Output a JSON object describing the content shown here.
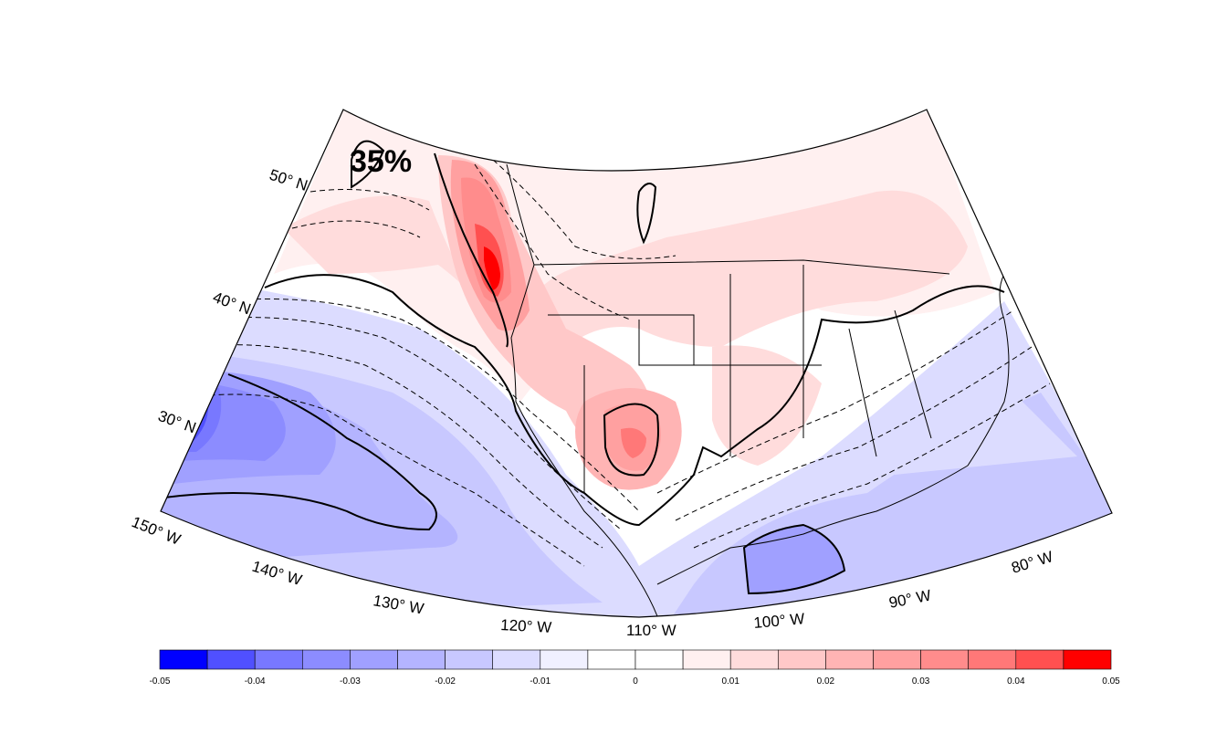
{
  "figure": {
    "panel_label": "35%",
    "latitude_labels": [
      {
        "id": "50n",
        "text": "50° N"
      },
      {
        "id": "40n",
        "text": "40° N"
      },
      {
        "id": "30n",
        "text": "30° N"
      }
    ],
    "longitude_labels": [
      {
        "id": "150w",
        "text": "150° W"
      },
      {
        "id": "140w",
        "text": "140° W"
      },
      {
        "id": "130w",
        "text": "130° W"
      },
      {
        "id": "120w",
        "text": "120° W"
      },
      {
        "id": "110w",
        "text": "110° W"
      },
      {
        "id": "100w",
        "text": "100° W"
      },
      {
        "id": "90w",
        "text": "90° W"
      },
      {
        "id": "80w",
        "text": "80° W"
      }
    ]
  },
  "colorbar": {
    "min": -0.05,
    "max": 0.05,
    "step": 0.005,
    "colors": [
      "#0000ff",
      "#5050ff",
      "#7878ff",
      "#8c8cff",
      "#a0a0ff",
      "#b4b4ff",
      "#c8c8ff",
      "#dcdcff",
      "#f0f0ff",
      "#ffffff",
      "#ffffff",
      "#fff0f0",
      "#ffdcdc",
      "#ffc8c8",
      "#ffb4b4",
      "#ffa0a0",
      "#ff8c8c",
      "#ff7878",
      "#ff5050",
      "#ff0000"
    ],
    "tick_labels": [
      "-0.05",
      "-0.04",
      "-0.03",
      "-0.02",
      "-0.01",
      "0",
      "0.01",
      "0.02",
      "0.03",
      "0.04",
      "0.05"
    ]
  },
  "style": {
    "contour_color": "#000000",
    "coast_color": "#000000",
    "grid_color": "#cccccc"
  }
}
